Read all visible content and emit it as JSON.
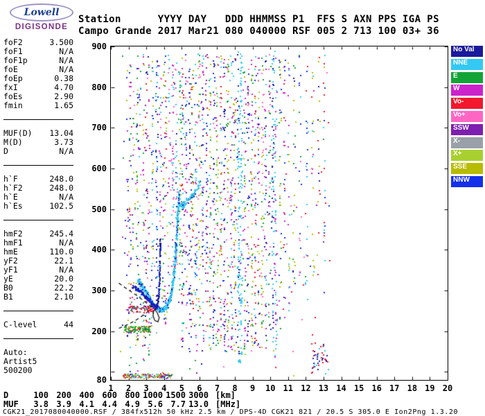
{
  "logo": {
    "brand": "Lowell",
    "name": "DIGISONDE"
  },
  "header": {
    "line1": "Station      YYYY DAY   DDD HHMMSS P1  FFS S AXN PPS IGA PS",
    "line2": "Campo Grande 2017 Mar21 080 040000 RSF 005 2 713 100 03+ 36"
  },
  "params": {
    "groups": [
      {
        "rows": [
          [
            "foF2",
            "3.500"
          ],
          [
            "foF1",
            "N/A"
          ],
          [
            "foF1p",
            "N/A"
          ],
          [
            "foE",
            "N/A"
          ],
          [
            "foEp",
            "0.38"
          ],
          [
            "fxI",
            "4.70"
          ],
          [
            "foEs",
            "2.90"
          ],
          [
            "fmin",
            "1.65"
          ]
        ]
      },
      {
        "rows": [
          [
            "MUF(D)",
            "13.04"
          ],
          [
            "M(D)",
            "3.73"
          ],
          [
            "D",
            "N/A"
          ]
        ]
      },
      {
        "rows": [
          [
            "h`F",
            "248.0"
          ],
          [
            "h`F2",
            "248.0"
          ],
          [
            "h`E",
            "N/A"
          ],
          [
            "h`Es",
            "102.5"
          ]
        ]
      },
      {
        "rows": [
          [
            "hmF2",
            "245.4"
          ],
          [
            "hmF1",
            "N/A"
          ],
          [
            "hmE",
            "110.0"
          ],
          [
            "yF2",
            "22.1"
          ],
          [
            "yF1",
            "N/A"
          ],
          [
            "yE",
            "20.0"
          ],
          [
            "B0",
            "22.2"
          ],
          [
            "B1",
            "2.10"
          ]
        ]
      },
      {
        "rows": [
          [
            "C-level",
            "44"
          ]
        ]
      }
    ],
    "auto": [
      "Auto:",
      "Artist5",
      "500200"
    ]
  },
  "legend": {
    "items": [
      {
        "label": "No Val",
        "key": "NoVal",
        "slug": "no-val"
      },
      {
        "label": "NNE",
        "key": "NNE",
        "slug": "nne"
      },
      {
        "label": "E",
        "key": "E",
        "slug": "e"
      },
      {
        "label": "W",
        "key": "W",
        "slug": "w"
      },
      {
        "label": "Vo-",
        "key": "Vo-",
        "slug": "vo-neg"
      },
      {
        "label": "Vo+",
        "key": "Vo+",
        "slug": "vo-pos"
      },
      {
        "label": "SSW",
        "key": "SSW",
        "slug": "ssw"
      },
      {
        "label": "X-",
        "key": "X-",
        "slug": "x-neg"
      },
      {
        "label": "X+",
        "key": "X+",
        "slug": "x-pos"
      },
      {
        "label": "SSE",
        "key": "SSE",
        "slug": "sse"
      },
      {
        "label": "NNW",
        "key": "NNW",
        "slug": "nnw"
      }
    ]
  },
  "muf_table": {
    "rows": [
      {
        "label": "D",
        "values": [
          "100",
          "200",
          "400",
          "600",
          "800",
          "1000",
          "1500",
          "3000"
        ],
        "unit": "[km]"
      },
      {
        "label": "MUF",
        "values": [
          "3.8",
          "3.9",
          "4.1",
          "4.4",
          "4.9",
          "5.6",
          "7.7",
          "13.0"
        ],
        "unit": "[MHz]"
      }
    ]
  },
  "footer": {
    "text": "CGK21_2017080040000.RSF / 384fx512h 50 kHz 2.5 km / DPS-4D CGK21 821 / 20.5 S 305.0 E Ion2Png 1.3.20"
  },
  "chart_data": {
    "type": "scatter",
    "title": "Digisonde ionogram - Campo Grande, 2017 day 080, 04:00:00 UT",
    "xlabel": "[MHz]",
    "ylabel": "[km]",
    "xlim": [
      1,
      20
    ],
    "ylim": [
      80,
      900
    ],
    "x_ticks": [
      1,
      2,
      3,
      4,
      5,
      6,
      7,
      8,
      9,
      10,
      11,
      12,
      13,
      14,
      15,
      16,
      17,
      18,
      19,
      20
    ],
    "y_ticks": [
      100,
      200,
      300,
      400,
      500,
      600,
      700,
      800,
      900
    ],
    "y_tick_labels": [
      900,
      800,
      700,
      600,
      500,
      400,
      300,
      200,
      80
    ],
    "grid": false,
    "legend_position": "right-outside",
    "scaled_values": {
      "foF2": 3.5,
      "fxI": 4.7,
      "foEs": 2.9,
      "fmin": 1.65,
      "hpF": 248.0,
      "hpEs": 102.5,
      "hmF2": 245.4,
      "MUF_3000": 13.04
    },
    "palette": {
      "NoVal": "#1a1a9c",
      "NNE": "#33c9f2",
      "E": "#13a438",
      "W": "#cc22cc",
      "Vo-": "#f2182d",
      "Vo+": "#ff66c4",
      "SSW": "#7d1fb0",
      "X-": "#9aa0a8",
      "X+": "#a8d030",
      "SSE": "#b8bc00",
      "NNW": "#1430e8"
    },
    "dot_size": 2,
    "seed": 7,
    "rfi_columns": [
      [
        1.95,
        120,
        860,
        22,
        [
          "W",
          "SSE",
          "NNW"
        ]
      ],
      [
        2.1,
        90,
        870,
        40,
        [
          "W",
          "Vo-",
          "E",
          "NNW"
        ]
      ],
      [
        2.3,
        200,
        850,
        18,
        [
          "SSE",
          "E",
          "Vo+"
        ]
      ],
      [
        2.5,
        90,
        880,
        48,
        [
          "E",
          "NoVal",
          "W",
          "X+"
        ]
      ],
      [
        2.65,
        250,
        840,
        20,
        [
          "Vo+",
          "NNW",
          "NNE"
        ]
      ],
      [
        2.85,
        110,
        880,
        45,
        [
          "SSE",
          "W",
          "NNE",
          "E"
        ]
      ],
      [
        3.0,
        160,
        870,
        38,
        [
          "NoVal",
          "SSW",
          "Vo-"
        ]
      ],
      [
        3.15,
        110,
        860,
        32,
        [
          "E",
          "W",
          "Vo+"
        ]
      ],
      [
        3.35,
        200,
        880,
        40,
        [
          "NNW",
          "SSE",
          "NNE"
        ]
      ],
      [
        3.6,
        260,
        880,
        55,
        [
          "NoVal",
          "NNW",
          "NNE"
        ]
      ],
      [
        3.8,
        300,
        880,
        35,
        [
          "NNE",
          "Vo+",
          "W"
        ]
      ],
      [
        3.95,
        210,
        870,
        28,
        [
          "SSE",
          "E",
          "NNW"
        ]
      ],
      [
        4.1,
        160,
        880,
        42,
        [
          "Vo-",
          "W",
          "NNW",
          "X+"
        ]
      ],
      [
        4.3,
        260,
        880,
        30,
        [
          "Vo+",
          "NNE",
          "SSW"
        ]
      ],
      [
        4.5,
        300,
        880,
        50,
        [
          "Vo+",
          "W",
          "NNE"
        ]
      ],
      [
        4.7,
        350,
        880,
        40,
        [
          "NNE",
          "NoVal",
          "Vo+"
        ]
      ],
      [
        4.9,
        300,
        880,
        46,
        [
          "NNE",
          "SSE",
          "E"
        ]
      ],
      [
        5.05,
        160,
        890,
        65,
        [
          "NoVal",
          "W",
          "E",
          "Vo-",
          "NNE"
        ]
      ],
      [
        5.25,
        200,
        880,
        42,
        [
          "Vo+",
          "W",
          "NNW"
        ]
      ],
      [
        5.45,
        150,
        880,
        52,
        [
          "NoVal",
          "SSW",
          "NNW"
        ]
      ],
      [
        5.6,
        200,
        880,
        46,
        [
          "E",
          "SSE",
          "Vo-"
        ]
      ],
      [
        5.8,
        150,
        880,
        52,
        [
          "W",
          "NNW",
          "NNE"
        ]
      ],
      [
        6.0,
        200,
        880,
        46,
        [
          "SSE",
          "X+",
          "E",
          "Vo+"
        ]
      ],
      [
        6.2,
        150,
        880,
        56,
        [
          "NNE",
          "NoVal",
          "W"
        ]
      ],
      [
        6.4,
        200,
        880,
        50,
        [
          "Vo-",
          "SSW",
          "NNW"
        ]
      ],
      [
        6.6,
        150,
        880,
        60,
        [
          "E",
          "W",
          "SSE",
          "NNE"
        ]
      ],
      [
        6.8,
        150,
        880,
        55,
        [
          "NoVal",
          "Vo+",
          "NNW"
        ]
      ],
      [
        7.0,
        150,
        880,
        60,
        [
          "W",
          "E",
          "X+"
        ]
      ],
      [
        7.2,
        150,
        880,
        55,
        [
          "SSE",
          "NNE",
          "Vo-"
        ]
      ],
      [
        7.4,
        150,
        880,
        60,
        [
          "NoVal",
          "W",
          "NNW"
        ]
      ],
      [
        7.6,
        150,
        880,
        55,
        [
          "E",
          "Vo+",
          "SSE"
        ]
      ],
      [
        7.8,
        150,
        880,
        60,
        [
          "NNE",
          "W",
          "SSW"
        ]
      ],
      [
        8.0,
        150,
        880,
        55,
        [
          "Vo-",
          "SSE",
          "NNW"
        ]
      ],
      [
        8.2,
        120,
        890,
        85,
        [
          "NNE",
          "NNE",
          "NoVal"
        ]
      ],
      [
        8.35,
        110,
        890,
        95,
        [
          "NNE"
        ]
      ],
      [
        8.55,
        150,
        880,
        55,
        [
          "W",
          "E",
          "SSE"
        ]
      ],
      [
        8.75,
        150,
        880,
        50,
        [
          "NoVal",
          "NNW",
          "Vo+"
        ]
      ],
      [
        8.95,
        150,
        880,
        55,
        [
          "SSE",
          "E",
          "W"
        ]
      ],
      [
        9.15,
        150,
        880,
        50,
        [
          "NNE",
          "Vo-",
          "NNW"
        ]
      ],
      [
        9.35,
        150,
        880,
        50,
        [
          "W",
          "NNW",
          "X+"
        ]
      ],
      [
        9.55,
        150,
        880,
        50,
        [
          "E",
          "SSE",
          "Vo+"
        ]
      ],
      [
        9.75,
        150,
        880,
        50,
        [
          "NoVal",
          "W",
          "NNE"
        ]
      ],
      [
        9.95,
        200,
        880,
        45,
        [
          "Vo+",
          "SSW",
          "E"
        ]
      ],
      [
        10.15,
        120,
        890,
        70,
        [
          "NNE",
          "NoVal"
        ]
      ],
      [
        10.3,
        120,
        890,
        65,
        [
          "NNE",
          "W"
        ]
      ],
      [
        10.55,
        200,
        880,
        35,
        [
          "SSE",
          "E",
          "NNW"
        ]
      ],
      [
        10.8,
        220,
        880,
        30,
        [
          "NNW",
          "Vo-",
          "W"
        ]
      ],
      [
        11.05,
        250,
        880,
        26,
        [
          "W",
          "NNE",
          "SSE"
        ]
      ],
      [
        11.35,
        260,
        880,
        22,
        [
          "NoVal",
          "SSE",
          "E"
        ]
      ],
      [
        11.7,
        300,
        880,
        18,
        [
          "E",
          "Vo+",
          "NNW"
        ]
      ],
      [
        12.05,
        260,
        880,
        22,
        [
          "Vo-",
          "NNW",
          "NNE"
        ]
      ],
      [
        12.4,
        300,
        880,
        18,
        [
          "NNE",
          "W",
          "SSE"
        ]
      ],
      [
        12.75,
        300,
        880,
        16,
        [
          "SSE",
          "NoVal",
          "Vo-"
        ]
      ],
      [
        13.05,
        260,
        880,
        20,
        [
          "NNE",
          "Vo-",
          "NNW"
        ]
      ]
    ],
    "traces": [
      {
        "name": "F-trace-x-mode",
        "n": 650,
        "jf": 0.06,
        "jh": 7,
        "colors": {
          "NNE": 0.82,
          "NNW": 0.08,
          "NoVal": 0.1
        },
        "pts": [
          [
            2.55,
            325
          ],
          [
            2.8,
            308
          ],
          [
            3.05,
            292
          ],
          [
            3.3,
            272
          ],
          [
            3.55,
            258
          ],
          [
            3.8,
            251
          ],
          [
            4.0,
            253
          ],
          [
            4.15,
            260
          ],
          [
            4.3,
            275
          ],
          [
            4.45,
            300
          ],
          [
            4.55,
            335
          ],
          [
            4.65,
            380
          ],
          [
            4.72,
            430
          ],
          [
            4.8,
            490
          ],
          [
            4.87,
            545
          ]
        ]
      },
      {
        "name": "F-trace-o-mode",
        "n": 280,
        "jf": 0.045,
        "jh": 6,
        "colors": {
          "NoVal": 0.65,
          "NNW": 0.35
        },
        "pts": [
          [
            2.2,
            312
          ],
          [
            2.5,
            303
          ],
          [
            2.8,
            292
          ],
          [
            3.05,
            281
          ],
          [
            3.25,
            270
          ],
          [
            3.42,
            262
          ],
          [
            3.56,
            259
          ],
          [
            3.65,
            266
          ],
          [
            3.71,
            290
          ],
          [
            3.75,
            330
          ],
          [
            3.78,
            380
          ],
          [
            3.8,
            425
          ]
        ]
      },
      {
        "name": "second-hop",
        "n": 90,
        "jf": 0.08,
        "jh": 10,
        "colors": {
          "NNE": 0.9,
          "NoVal": 0.1
        },
        "pts": [
          [
            4.9,
            505
          ],
          [
            5.15,
            512
          ],
          [
            5.45,
            525
          ],
          [
            5.8,
            545
          ],
          [
            6.1,
            570
          ]
        ]
      }
    ],
    "clusters": [
      {
        "name": "Es-layer",
        "f": [
          1.7,
          4.45
        ],
        "h": [
          84,
          95
        ],
        "n": 150,
        "colors": [
          "E",
          "Vo-",
          "NNW",
          "W",
          "X+",
          "SSE",
          "NNE"
        ]
      },
      {
        "name": "mid-band",
        "f": [
          1.75,
          3.25
        ],
        "h": [
          197,
          212
        ],
        "n": 110,
        "colors": [
          "E",
          "Vo-",
          "X+",
          "E"
        ]
      },
      {
        "name": "F-leading-edge",
        "f": [
          2.0,
          3.45
        ],
        "h": [
          245,
          262
        ],
        "n": 70,
        "colors": [
          "Vo-",
          "E",
          "W",
          "Vo-"
        ]
      },
      {
        "name": "bottom-right",
        "f": [
          12.3,
          13.3
        ],
        "h": [
          95,
          170
        ],
        "n": 45,
        "colors": [
          "NNE",
          "Vo-",
          "NoVal"
        ]
      },
      {
        "name": "upper-left-sparse",
        "f": [
          1.6,
          2.6
        ],
        "h": [
          380,
          680
        ],
        "n": 18,
        "colors": [
          "NNW",
          "W",
          "SSE"
        ]
      }
    ],
    "sprinkle": {
      "f": [
        1.55,
        13.4
      ],
      "h": [
        85,
        893
      ],
      "n": 170
    },
    "dashed_lines": [
      [
        [
          1.45,
          318
        ],
        [
          2.0,
          301
        ],
        [
          2.55,
          285
        ],
        [
          3.05,
          268
        ],
        [
          3.45,
          255
        ]
      ],
      [
        [
          1.45,
          207
        ],
        [
          1.95,
          216
        ],
        [
          2.45,
          228
        ],
        [
          2.85,
          240
        ],
        [
          3.2,
          251
        ]
      ]
    ],
    "artist_loop": [
      [
        3.45,
        255
      ],
      [
        3.62,
        245
      ],
      [
        3.73,
        233
      ],
      [
        3.66,
        223
      ],
      [
        3.48,
        226
      ],
      [
        3.38,
        238
      ],
      [
        3.42,
        250
      ],
      [
        3.5,
        255
      ]
    ]
  }
}
